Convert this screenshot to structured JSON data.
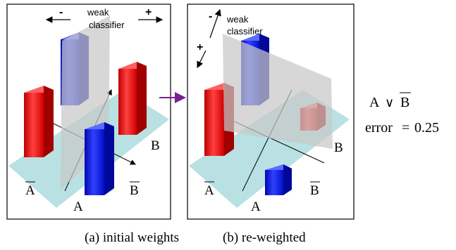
{
  "panel_a": {
    "classifier_minus": "-",
    "classifier_plus": "+",
    "classifier_label_line1": "weak",
    "classifier_label_line2": "classifier",
    "axis_a": "A",
    "axis_a_bar": "A",
    "axis_b": "B",
    "axis_b_bar": "B"
  },
  "panel_b": {
    "classifier_minus": "-",
    "classifier_plus": "+",
    "classifier_label_line1": "weak",
    "classifier_label_line2": "classifier",
    "axis_a": "A",
    "axis_a_bar": "A",
    "axis_b": "B",
    "axis_b_bar": "B"
  },
  "formula": {
    "expression_left": "A",
    "operator": "∨",
    "expression_right_bar": "B",
    "error_label": "error",
    "equals": "=",
    "error_value": "0.25"
  },
  "captions": {
    "a": "(a) initial weights",
    "b": "(b) re-weighted"
  },
  "colors": {
    "red": "#e60000",
    "blue": "#0010d8",
    "plane": "#b9e1e3",
    "classifier_plane": "#c8c8c8",
    "arrow_purple": "#7a1f8f"
  }
}
